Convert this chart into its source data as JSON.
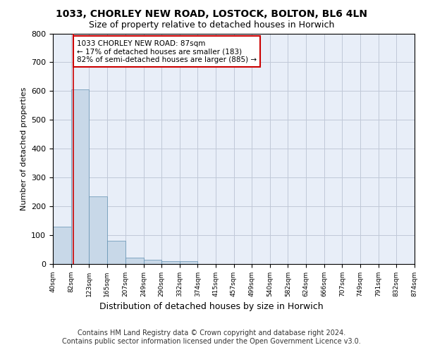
{
  "title_line1": "1033, CHORLEY NEW ROAD, LOSTOCK, BOLTON, BL6 4LN",
  "title_line2": "Size of property relative to detached houses in Horwich",
  "xlabel": "Distribution of detached houses by size in Horwich",
  "ylabel": "Number of detached properties",
  "bar_color": "#c8d8e8",
  "bar_edge_color": "#6090b0",
  "grid_color": "#c0c8d8",
  "background_color": "#e8eef8",
  "vline_color": "#cc0000",
  "vline_x": 87,
  "annotation_text": "1033 CHORLEY NEW ROAD: 87sqm\n← 17% of detached houses are smaller (183)\n82% of semi-detached houses are larger (885) →",
  "annotation_box_color": "#ffffff",
  "annotation_box_edge": "#cc0000",
  "bin_edges": [
    40,
    82,
    123,
    165,
    207,
    249,
    290,
    332,
    374,
    415,
    457,
    499,
    540,
    582,
    624,
    666,
    707,
    749,
    791,
    832,
    874
  ],
  "bar_heights": [
    130,
    605,
    235,
    80,
    22,
    14,
    10,
    10,
    0,
    0,
    0,
    0,
    0,
    0,
    0,
    0,
    0,
    0,
    0,
    0
  ],
  "ylim": [
    0,
    800
  ],
  "yticks": [
    0,
    100,
    200,
    300,
    400,
    500,
    600,
    700,
    800
  ],
  "footer_line1": "Contains HM Land Registry data © Crown copyright and database right 2024.",
  "footer_line2": "Contains public sector information licensed under the Open Government Licence v3.0.",
  "title_fontsize": 10,
  "subtitle_fontsize": 9,
  "footer_fontsize": 7,
  "annot_fontsize": 7.5,
  "ylabel_fontsize": 8,
  "xlabel_fontsize": 9,
  "ytick_fontsize": 8,
  "xtick_fontsize": 6.5
}
